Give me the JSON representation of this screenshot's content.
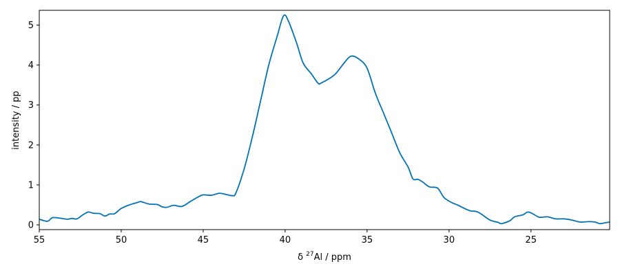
{
  "chart_data": {
    "type": "line",
    "title": "",
    "xlabel_prefix": "δ ",
    "xlabel_sup": "27",
    "xlabel_suffix": "Al / ppm",
    "ylabel": "intensity / pp",
    "xlim": [
      55,
      20.2
    ],
    "ylim": [
      -0.12,
      5.37
    ],
    "x_reversed": true,
    "grid": false,
    "line_color": "#0072b2",
    "xticks": [
      55,
      50,
      45,
      40,
      35,
      30,
      25
    ],
    "xtick_labels": [
      "55",
      "50",
      "45",
      "40",
      "35",
      "30",
      "25"
    ],
    "yticks": [
      0,
      1,
      2,
      3,
      4,
      5
    ],
    "ytick_labels": [
      "0",
      "1",
      "2",
      "3",
      "4",
      "5"
    ],
    "series": [
      {
        "points": [
          [
            55.0,
            0.14
          ],
          [
            54.5,
            0.09
          ],
          [
            54.2,
            0.18
          ],
          [
            53.8,
            0.17
          ],
          [
            53.3,
            0.14
          ],
          [
            53.0,
            0.16
          ],
          [
            52.7,
            0.15
          ],
          [
            52.3,
            0.26
          ],
          [
            52.0,
            0.32
          ],
          [
            51.7,
            0.29
          ],
          [
            51.3,
            0.28
          ],
          [
            51.0,
            0.22
          ],
          [
            50.7,
            0.27
          ],
          [
            50.4,
            0.28
          ],
          [
            50.0,
            0.41
          ],
          [
            49.5,
            0.5
          ],
          [
            49.0,
            0.56
          ],
          [
            48.8,
            0.58
          ],
          [
            48.3,
            0.52
          ],
          [
            47.8,
            0.51
          ],
          [
            47.5,
            0.45
          ],
          [
            47.2,
            0.44
          ],
          [
            46.8,
            0.49
          ],
          [
            46.3,
            0.46
          ],
          [
            45.8,
            0.58
          ],
          [
            45.3,
            0.7
          ],
          [
            45.0,
            0.75
          ],
          [
            44.5,
            0.74
          ],
          [
            44.0,
            0.79
          ],
          [
            43.5,
            0.75
          ],
          [
            43.2,
            0.73
          ],
          [
            43.0,
            0.8
          ],
          [
            42.5,
            1.4
          ],
          [
            42.0,
            2.2
          ],
          [
            41.5,
            3.1
          ],
          [
            41.0,
            4.0
          ],
          [
            40.5,
            4.7
          ],
          [
            40.1,
            5.23
          ],
          [
            39.8,
            5.1
          ],
          [
            39.3,
            4.55
          ],
          [
            38.9,
            4.05
          ],
          [
            38.4,
            3.78
          ],
          [
            38.0,
            3.55
          ],
          [
            37.8,
            3.55
          ],
          [
            37.0,
            3.75
          ],
          [
            36.5,
            4.0
          ],
          [
            36.0,
            4.22
          ],
          [
            35.5,
            4.15
          ],
          [
            35.0,
            3.92
          ],
          [
            34.5,
            3.3
          ],
          [
            34.0,
            2.8
          ],
          [
            33.5,
            2.3
          ],
          [
            33.0,
            1.8
          ],
          [
            32.5,
            1.45
          ],
          [
            32.2,
            1.15
          ],
          [
            31.9,
            1.14
          ],
          [
            31.6,
            1.07
          ],
          [
            31.2,
            0.95
          ],
          [
            30.7,
            0.92
          ],
          [
            30.3,
            0.68
          ],
          [
            29.8,
            0.55
          ],
          [
            29.5,
            0.5
          ],
          [
            29.0,
            0.4
          ],
          [
            28.7,
            0.35
          ],
          [
            28.3,
            0.33
          ],
          [
            28.0,
            0.26
          ],
          [
            27.5,
            0.12
          ],
          [
            27.0,
            0.06
          ],
          [
            26.8,
            0.03
          ],
          [
            26.3,
            0.1
          ],
          [
            26.0,
            0.2
          ],
          [
            25.5,
            0.25
          ],
          [
            25.2,
            0.32
          ],
          [
            24.9,
            0.28
          ],
          [
            24.5,
            0.19
          ],
          [
            24.0,
            0.2
          ],
          [
            23.5,
            0.15
          ],
          [
            23.0,
            0.15
          ],
          [
            22.5,
            0.12
          ],
          [
            22.0,
            0.07
          ],
          [
            21.5,
            0.08
          ],
          [
            21.1,
            0.07
          ],
          [
            20.8,
            0.03
          ],
          [
            20.5,
            0.05
          ],
          [
            20.2,
            0.07
          ]
        ]
      }
    ]
  }
}
